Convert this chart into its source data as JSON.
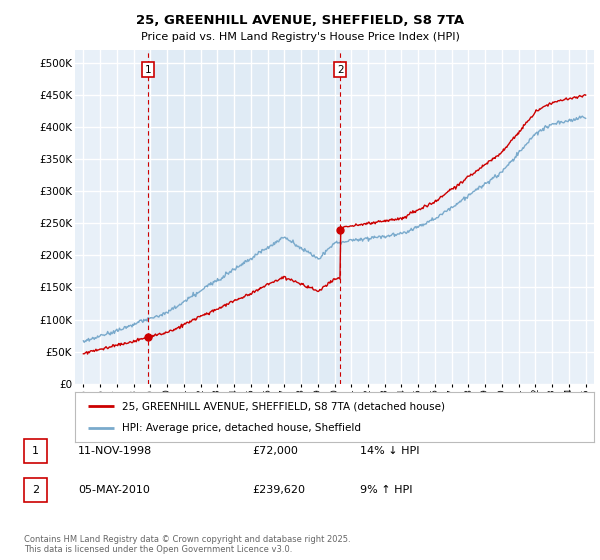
{
  "title_line1": "25, GREENHILL AVENUE, SHEFFIELD, S8 7TA",
  "title_line2": "Price paid vs. HM Land Registry's House Price Index (HPI)",
  "yticks": [
    0,
    50000,
    100000,
    150000,
    200000,
    250000,
    300000,
    350000,
    400000,
    450000,
    500000
  ],
  "ylim": [
    0,
    520000
  ],
  "xlim_start": 1994.5,
  "xlim_end": 2025.5,
  "xticks": [
    1995,
    1996,
    1997,
    1998,
    1999,
    2000,
    2001,
    2002,
    2003,
    2004,
    2005,
    2006,
    2007,
    2008,
    2009,
    2010,
    2011,
    2012,
    2013,
    2014,
    2015,
    2016,
    2017,
    2018,
    2019,
    2020,
    2021,
    2022,
    2023,
    2024,
    2025
  ],
  "red_line_color": "#cc0000",
  "blue_line_color": "#7aaacc",
  "vline_color": "#cc0000",
  "marker1_year": 1998.86,
  "marker2_year": 2010.34,
  "marker1_price": 72000,
  "marker2_price": 239620,
  "legend_label_red": "25, GREENHILL AVENUE, SHEFFIELD, S8 7TA (detached house)",
  "legend_label_blue": "HPI: Average price, detached house, Sheffield",
  "table_row1": [
    "1",
    "11-NOV-1998",
    "£72,000",
    "14% ↓ HPI"
  ],
  "table_row2": [
    "2",
    "05-MAY-2010",
    "£239,620",
    "9% ↑ HPI"
  ],
  "footnote": "Contains HM Land Registry data © Crown copyright and database right 2025.\nThis data is licensed under the Open Government Licence v3.0.",
  "bg_color": "#ffffff",
  "plot_bg_color": "#e8f0f8",
  "grid_color": "#ffffff",
  "shade_color": "#dce8f4"
}
